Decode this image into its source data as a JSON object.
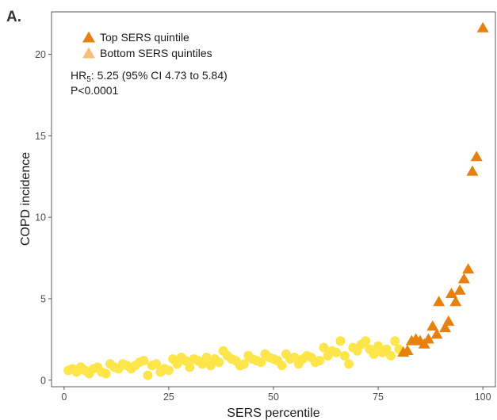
{
  "chart_data": {
    "type": "scatter",
    "panel_label": "A.",
    "xlabel": "SERS percentile",
    "ylabel": "COPD incidence",
    "xlim": [
      -3,
      103
    ],
    "ylim": [
      -0.4,
      22.6
    ],
    "xticks": [
      0,
      25,
      50,
      75,
      100
    ],
    "yticks": [
      0,
      5,
      10,
      15,
      20
    ],
    "grid": false,
    "legend_position": "top-left",
    "annotation": {
      "hr_prefix": "HR",
      "hr_subscript": "5",
      "hr_rest": ": 5.25 (95% CI 4.73 to 5.84)",
      "p": "P<0.0001"
    },
    "series": [
      {
        "name": "Top SERS quintile",
        "marker": "triangle",
        "color": "#E8800F",
        "points": [
          [
            81,
            1.7
          ],
          [
            82,
            1.8
          ],
          [
            83,
            2.4
          ],
          [
            84,
            2.5
          ],
          [
            85,
            2.4
          ],
          [
            86,
            2.2
          ],
          [
            87,
            2.5
          ],
          [
            88,
            3.3
          ],
          [
            89,
            2.8
          ],
          [
            89.5,
            4.8
          ],
          [
            91,
            3.2
          ],
          [
            91.8,
            3.6
          ],
          [
            92.5,
            5.3
          ],
          [
            93.5,
            4.8
          ],
          [
            94.5,
            5.5
          ],
          [
            95.5,
            6.2
          ],
          [
            96.5,
            6.8
          ],
          [
            97.5,
            12.8
          ],
          [
            98.5,
            13.7
          ],
          [
            100,
            21.6
          ]
        ]
      },
      {
        "name": "Bottom SERS quintiles",
        "marker": "circle",
        "color": "#FDE54A",
        "points": [
          [
            1,
            0.6
          ],
          [
            2,
            0.7
          ],
          [
            3,
            0.5
          ],
          [
            4,
            0.8
          ],
          [
            5,
            0.6
          ],
          [
            6,
            0.4
          ],
          [
            7,
            0.7
          ],
          [
            8,
            0.8
          ],
          [
            9,
            0.5
          ],
          [
            10,
            0.4
          ],
          [
            11,
            1.0
          ],
          [
            12,
            0.8
          ],
          [
            13,
            0.7
          ],
          [
            14,
            1.0
          ],
          [
            15,
            0.9
          ],
          [
            16,
            0.7
          ],
          [
            17,
            0.9
          ],
          [
            18,
            1.1
          ],
          [
            19,
            1.2
          ],
          [
            20,
            0.3
          ],
          [
            21,
            0.9
          ],
          [
            22,
            1.0
          ],
          [
            23,
            0.5
          ],
          [
            24,
            0.7
          ],
          [
            25,
            0.6
          ],
          [
            26,
            1.3
          ],
          [
            27,
            1.0
          ],
          [
            28,
            1.4
          ],
          [
            29,
            1.2
          ],
          [
            30,
            0.8
          ],
          [
            31,
            1.3
          ],
          [
            32,
            1.2
          ],
          [
            33,
            1.0
          ],
          [
            34,
            1.4
          ],
          [
            35,
            0.9
          ],
          [
            36,
            1.3
          ],
          [
            37,
            1.1
          ],
          [
            38,
            1.8
          ],
          [
            39,
            1.5
          ],
          [
            40,
            1.3
          ],
          [
            41,
            1.2
          ],
          [
            42,
            0.9
          ],
          [
            43,
            1.0
          ],
          [
            44,
            1.5
          ],
          [
            45,
            1.3
          ],
          [
            46,
            1.2
          ],
          [
            47,
            1.1
          ],
          [
            48,
            1.6
          ],
          [
            49,
            1.4
          ],
          [
            50,
            1.3
          ],
          [
            51,
            1.2
          ],
          [
            52,
            0.9
          ],
          [
            53,
            1.6
          ],
          [
            54,
            1.3
          ],
          [
            55,
            1.4
          ],
          [
            56,
            1.0
          ],
          [
            57,
            1.3
          ],
          [
            58,
            1.5
          ],
          [
            59,
            1.4
          ],
          [
            60,
            1.1
          ],
          [
            61,
            1.2
          ],
          [
            62,
            2.0
          ],
          [
            63,
            1.5
          ],
          [
            64,
            1.8
          ],
          [
            65,
            1.7
          ],
          [
            66,
            2.4
          ],
          [
            67,
            1.5
          ],
          [
            68,
            1.0
          ],
          [
            69,
            2.0
          ],
          [
            70,
            1.8
          ],
          [
            71,
            2.2
          ],
          [
            72,
            2.4
          ],
          [
            73,
            1.9
          ],
          [
            74,
            1.6
          ],
          [
            75,
            2.1
          ],
          [
            76,
            1.7
          ],
          [
            77,
            1.9
          ],
          [
            78,
            1.5
          ],
          [
            79,
            2.4
          ],
          [
            80,
            1.9
          ]
        ]
      }
    ]
  }
}
